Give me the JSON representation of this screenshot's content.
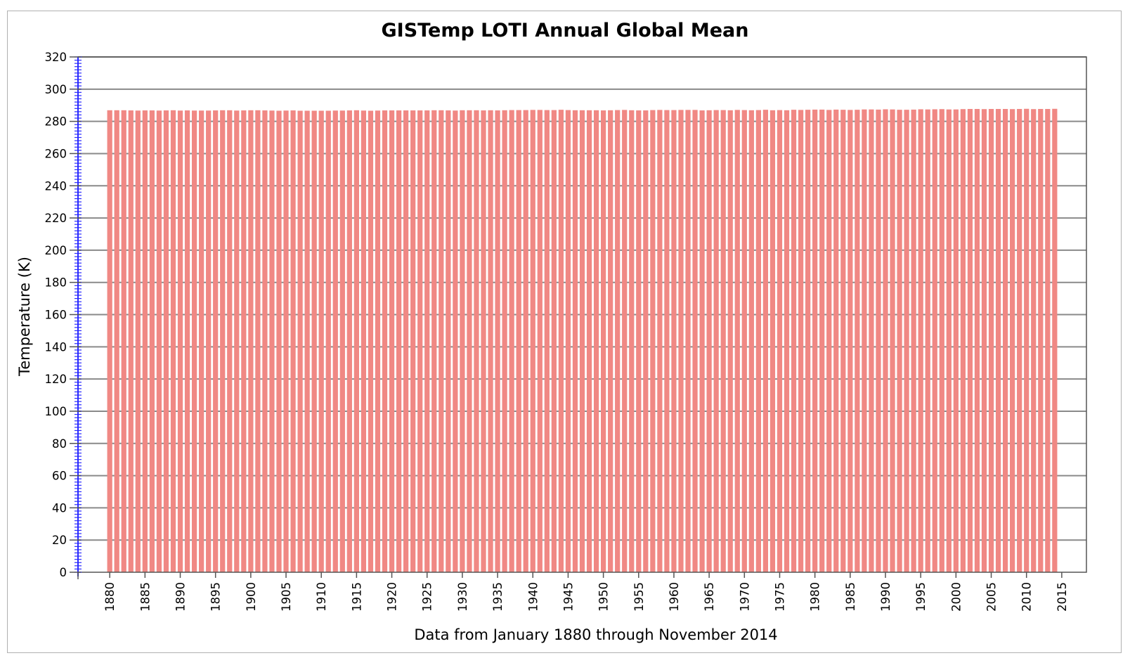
{
  "chart_data": {
    "type": "bar",
    "title": "GISTemp LOTI Annual Global Mean",
    "xlabel": "Data from January 1880 through November 2014",
    "ylabel": "Temperature (K)",
    "xlim": [
      1875.5,
      2018.5
    ],
    "ylim": [
      0,
      320
    ],
    "yticks": [
      0,
      20,
      40,
      60,
      80,
      100,
      120,
      140,
      160,
      180,
      200,
      220,
      240,
      260,
      280,
      300,
      320
    ],
    "xticks": [
      1880,
      1885,
      1890,
      1895,
      1900,
      1905,
      1910,
      1915,
      1920,
      1925,
      1930,
      1935,
      1940,
      1945,
      1950,
      1955,
      1960,
      1965,
      1970,
      1975,
      1980,
      1985,
      1990,
      1995,
      2000,
      2005,
      2010,
      2015
    ],
    "grid": true,
    "bar_color": "#f08884",
    "x": [
      1880,
      1881,
      1882,
      1883,
      1884,
      1885,
      1886,
      1887,
      1888,
      1889,
      1890,
      1891,
      1892,
      1893,
      1894,
      1895,
      1896,
      1897,
      1898,
      1899,
      1900,
      1901,
      1902,
      1903,
      1904,
      1905,
      1906,
      1907,
      1908,
      1909,
      1910,
      1911,
      1912,
      1913,
      1914,
      1915,
      1916,
      1917,
      1918,
      1919,
      1920,
      1921,
      1922,
      1923,
      1924,
      1925,
      1926,
      1927,
      1928,
      1929,
      1930,
      1931,
      1932,
      1933,
      1934,
      1935,
      1936,
      1937,
      1938,
      1939,
      1940,
      1941,
      1942,
      1943,
      1944,
      1945,
      1946,
      1947,
      1948,
      1949,
      1950,
      1951,
      1952,
      1953,
      1954,
      1955,
      1956,
      1957,
      1958,
      1959,
      1960,
      1961,
      1962,
      1963,
      1964,
      1965,
      1966,
      1967,
      1968,
      1969,
      1970,
      1971,
      1972,
      1973,
      1974,
      1975,
      1976,
      1977,
      1978,
      1979,
      1980,
      1981,
      1982,
      1983,
      1984,
      1985,
      1986,
      1987,
      1988,
      1989,
      1990,
      1991,
      1992,
      1993,
      1994,
      1995,
      1996,
      1997,
      1998,
      1999,
      2000,
      2001,
      2002,
      2003,
      2004,
      2005,
      2006,
      2007,
      2008,
      2009,
      2010,
      2011,
      2012,
      2013,
      2014
    ],
    "values": [
      286.9,
      286.9,
      286.9,
      286.8,
      286.7,
      286.8,
      286.8,
      286.7,
      286.8,
      286.9,
      286.7,
      286.8,
      286.7,
      286.7,
      286.7,
      286.8,
      286.9,
      286.9,
      286.7,
      286.8,
      286.9,
      286.9,
      286.8,
      286.7,
      286.6,
      286.7,
      286.8,
      286.6,
      286.6,
      286.6,
      286.6,
      286.6,
      286.7,
      286.7,
      286.8,
      286.9,
      286.7,
      286.6,
      286.7,
      286.8,
      286.8,
      286.8,
      286.8,
      286.8,
      286.8,
      286.8,
      286.9,
      286.9,
      286.8,
      286.7,
      286.9,
      286.9,
      286.9,
      286.8,
      286.9,
      286.8,
      286.9,
      287.0,
      287.0,
      287.0,
      287.1,
      287.1,
      287.0,
      287.0,
      287.2,
      287.0,
      286.9,
      286.9,
      286.9,
      286.9,
      286.8,
      286.9,
      287.0,
      287.1,
      286.9,
      286.8,
      286.8,
      287.0,
      287.1,
      287.0,
      287.0,
      287.1,
      287.1,
      287.1,
      286.8,
      286.9,
      287.0,
      287.0,
      286.9,
      287.1,
      287.0,
      286.9,
      287.0,
      287.2,
      286.9,
      287.0,
      286.9,
      287.2,
      287.1,
      287.2,
      287.3,
      287.3,
      287.1,
      287.3,
      287.2,
      287.1,
      287.2,
      287.4,
      287.4,
      287.3,
      287.5,
      287.4,
      287.2,
      287.2,
      287.3,
      287.5,
      287.4,
      287.5,
      287.6,
      287.4,
      287.4,
      287.6,
      287.7,
      287.7,
      287.6,
      287.7,
      287.7,
      287.7,
      287.6,
      287.7,
      287.8,
      287.6,
      287.7,
      287.7,
      287.8
    ]
  }
}
